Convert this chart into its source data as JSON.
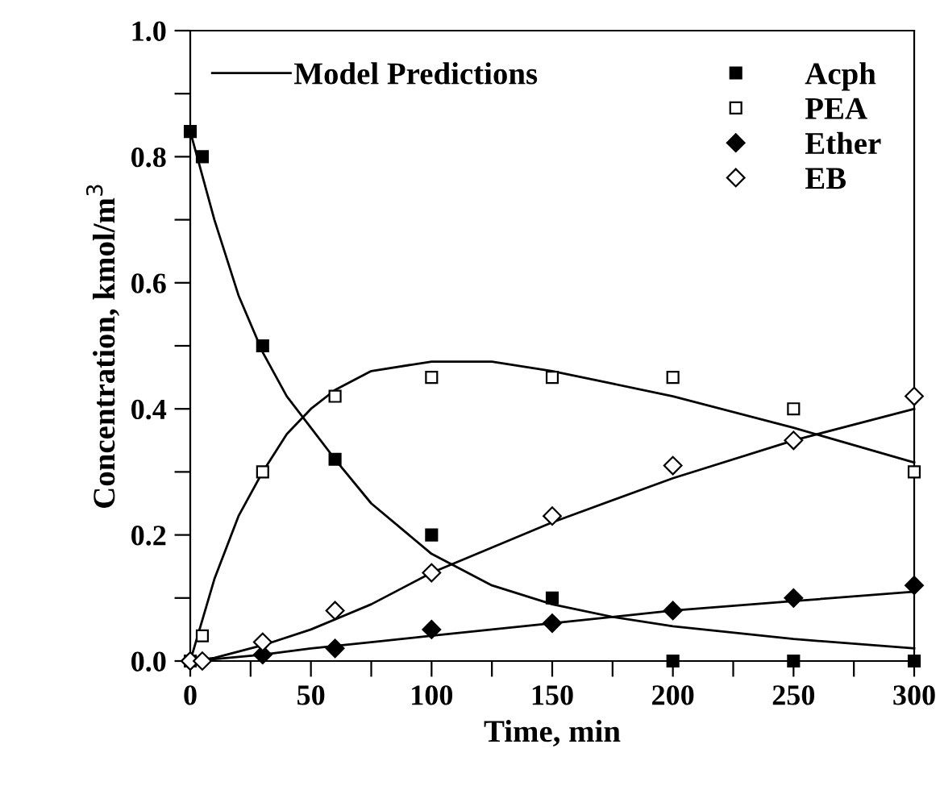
{
  "chart_data": {
    "type": "scatter",
    "xlabel": "Time, min",
    "ylabel": "Concentration, kmol/m$^{3}$",
    "xlim": [
      0,
      300
    ],
    "ylim": [
      0,
      1.0
    ],
    "xticks": [
      0,
      {
        "value": 25,
        "label": null
      },
      50,
      {
        "value": 75,
        "label": null
      },
      100,
      {
        "value": 125,
        "label": null
      },
      150,
      {
        "value": 175,
        "label": null
      },
      200,
      {
        "value": 225,
        "label": null
      },
      250,
      {
        "value": 275,
        "label": null
      },
      300
    ],
    "yticks": [
      {
        "value": 0,
        "label": "0.0"
      },
      {
        "value": 0.1,
        "label": null
      },
      {
        "value": 0.2,
        "label": "0.2"
      },
      {
        "value": 0.3,
        "label": null
      },
      {
        "value": 0.4,
        "label": "0.4"
      },
      {
        "value": 0.5,
        "label": null
      },
      {
        "value": 0.6,
        "label": "0.6"
      },
      {
        "value": 0.7,
        "label": null
      },
      {
        "value": 0.8,
        "label": "0.8"
      },
      {
        "value": 0.9,
        "label": null
      },
      {
        "value": 1.0,
        "label": "1.0"
      }
    ],
    "grid": false,
    "legend": "top",
    "series": [
      {
        "type": "line",
        "name": "Model Predictions",
        "color": "#000000",
        "marker": "none",
        "x": [
          0,
          10,
          20,
          30,
          40,
          50,
          60,
          75,
          100,
          125,
          150,
          175,
          200,
          250,
          300
        ],
        "values": [
          0.84,
          0.7,
          0.58,
          0.49,
          0.42,
          0.37,
          0.32,
          0.25,
          0.17,
          0.12,
          0.09,
          0.07,
          0.055,
          0.035,
          0.02
        ]
      },
      {
        "type": "line",
        "color": "#000000",
        "marker": "none",
        "x": [
          0,
          10,
          20,
          30,
          40,
          50,
          60,
          75,
          100,
          125,
          150,
          175,
          200,
          250,
          300
        ],
        "values": [
          0,
          0.13,
          0.23,
          0.3,
          0.36,
          0.4,
          0.43,
          0.46,
          0.475,
          0.475,
          0.46,
          0.44,
          0.42,
          0.37,
          0.315
        ]
      },
      {
        "type": "line",
        "color": "#000000",
        "marker": "none",
        "x": [
          0,
          10,
          30,
          50,
          75,
          100,
          125,
          150,
          200,
          250,
          300
        ],
        "values": [
          0,
          0.005,
          0.025,
          0.05,
          0.09,
          0.14,
          0.18,
          0.22,
          0.29,
          0.35,
          0.4
        ]
      },
      {
        "type": "line",
        "color": "#000000",
        "marker": "none",
        "x": [
          0,
          10,
          30,
          50,
          75,
          100,
          150,
          200,
          250,
          300
        ],
        "values": [
          0,
          0.003,
          0.01,
          0.02,
          0.03,
          0.04,
          0.06,
          0.08,
          0.095,
          0.11
        ]
      },
      {
        "name": "Acph",
        "color": "#000000",
        "marker": "square",
        "x": [
          0,
          5,
          30,
          60,
          100,
          150,
          200,
          250,
          300
        ],
        "values": [
          0.84,
          0.8,
          0.5,
          0.32,
          0.2,
          0.1,
          0.0,
          0.0,
          0.0
        ]
      },
      {
        "name": "PEA",
        "color": "#ffffff",
        "marker": "square",
        "x": [
          0,
          5,
          30,
          60,
          100,
          150,
          200,
          250,
          300
        ],
        "values": [
          0,
          0.04,
          0.3,
          0.42,
          0.45,
          0.45,
          0.45,
          0.4,
          0.3
        ]
      },
      {
        "name": "Ether",
        "color": "#000000",
        "marker": "diamond",
        "x": [
          0,
          30,
          60,
          100,
          150,
          200,
          250,
          300
        ],
        "values": [
          0,
          0.01,
          0.02,
          0.05,
          0.06,
          0.08,
          0.1,
          0.12
        ]
      },
      {
        "name": "EB",
        "color": "#ffffff",
        "marker": "diamond",
        "x": [
          0,
          5,
          30,
          60,
          100,
          150,
          200,
          250,
          300
        ],
        "values": [
          0,
          0.0,
          0.03,
          0.08,
          0.14,
          0.23,
          0.31,
          0.35,
          0.42
        ]
      }
    ]
  }
}
